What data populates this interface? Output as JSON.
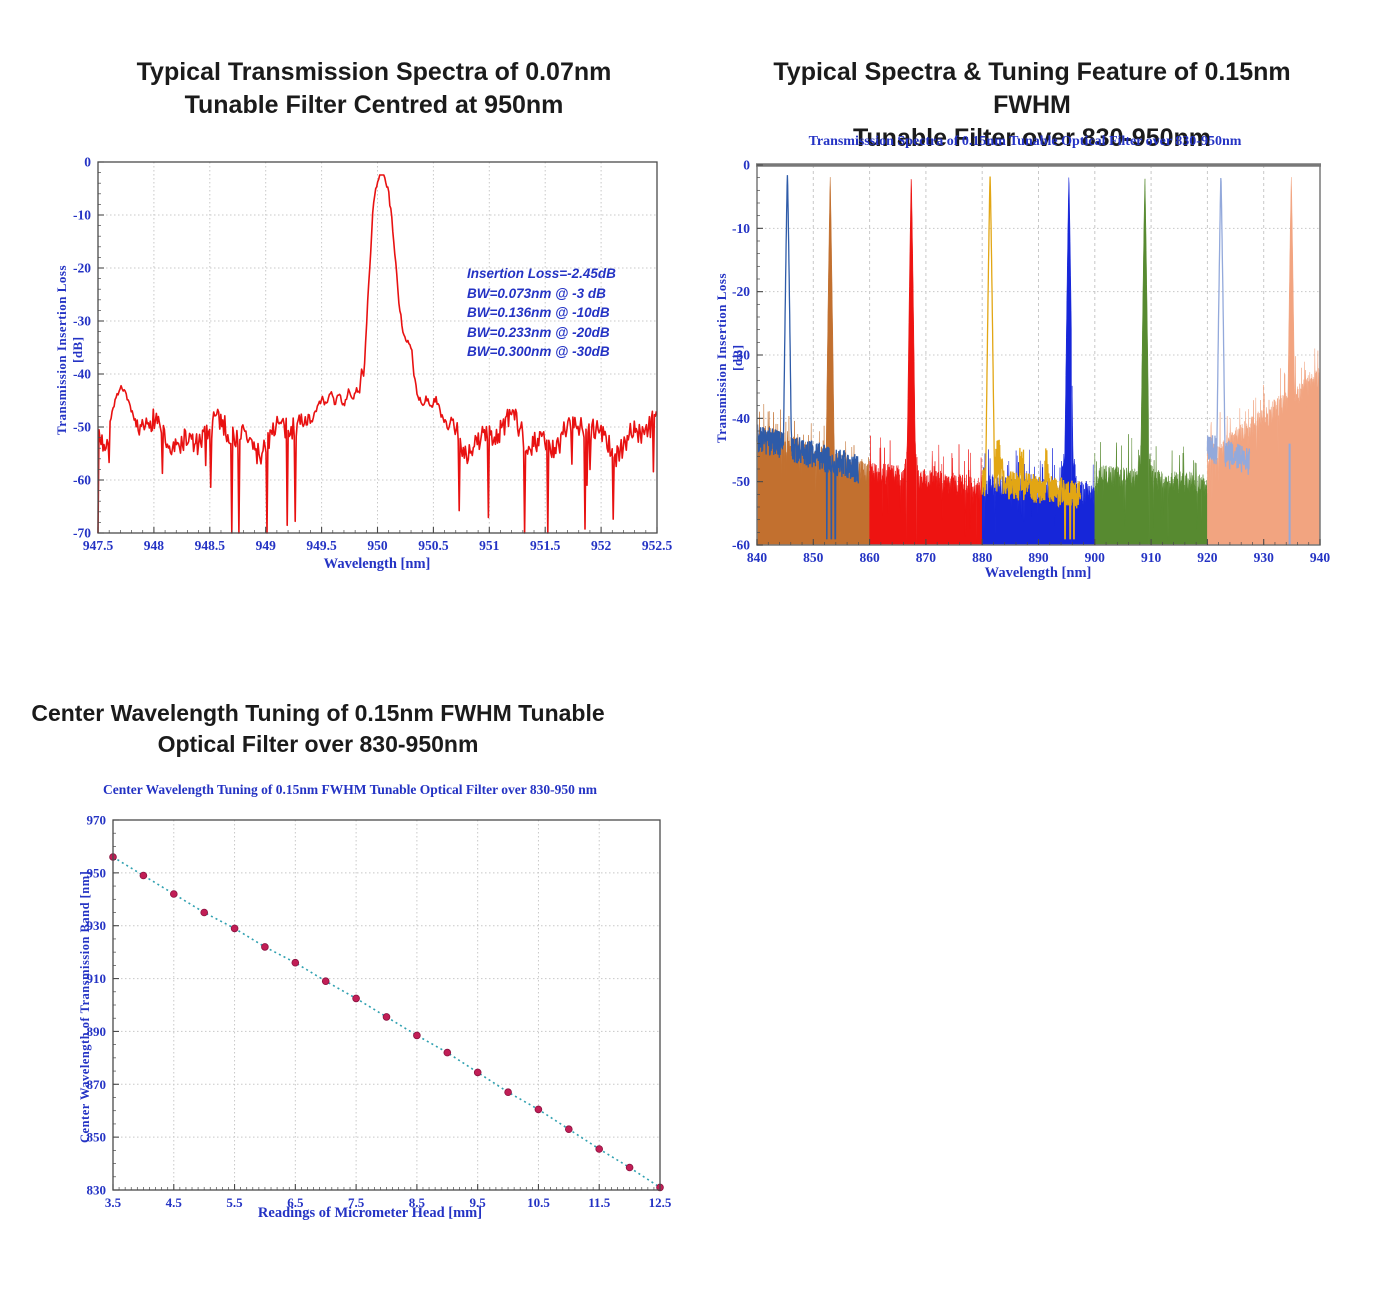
{
  "styles": {
    "heading_color": "#1b1b1b",
    "label_blue": "#2433C4",
    "title_blue": "#2026C8",
    "grid_color": "#c8c8c8",
    "frame_color": "#4a4a4a",
    "frame_gray": "#787878",
    "background": "#ffffff"
  },
  "chart_data": [
    {
      "type": "line",
      "heading": {
        "line1": "Typical Transmission Spectra of 0.07nm",
        "line2": "Tunable Filter Centred at 950nm"
      },
      "xlabel": "Wavelength [nm]",
      "ylabel": "Transmission Insertion Loss [dB]",
      "xlim": [
        947.5,
        952.5
      ],
      "ylim": [
        -70,
        0
      ],
      "x_ticks": [
        "947.5",
        "948",
        "948.5",
        "949",
        "949.5",
        "950",
        "950.5",
        "951",
        "951.5",
        "952",
        "952.5"
      ],
      "y_ticks": [
        "0",
        "-10",
        "-20",
        "-30",
        "-40",
        "-50",
        "-60",
        "-70"
      ],
      "line_color": "#E81111",
      "annotation": {
        "lines": [
          "Insertion Loss=-2.45dB",
          "BW=0.073nm @ -3 dB",
          "BW=0.136nm @ -10dB",
          "BW=0.233nm @ -20dB",
          "BW=0.300nm @ -30dB"
        ],
        "color": "#2433C4"
      },
      "peak": {
        "center_nm": 950.0,
        "top_db": -2.45,
        "fwhm_nm": 0.073
      },
      "noise_floor_db": -52,
      "envelope_segments": [
        [
          [
            947.6,
            -50
          ],
          [
            947.66,
            -44.5
          ],
          [
            947.7,
            -42.5
          ],
          [
            947.75,
            -44
          ],
          [
            947.8,
            -47
          ],
          [
            947.85,
            -50
          ]
        ],
        [
          [
            949.38,
            -50
          ],
          [
            949.45,
            -47
          ],
          [
            949.5,
            -44.5
          ],
          [
            949.55,
            -46
          ],
          [
            949.58,
            -43.5
          ],
          [
            949.62,
            -45.5
          ],
          [
            949.66,
            -43.8
          ],
          [
            949.7,
            -46
          ],
          [
            949.74,
            -43
          ],
          [
            949.78,
            -45
          ],
          [
            949.81,
            -42.5
          ],
          [
            949.84,
            -43.5
          ],
          [
            949.86,
            -39
          ],
          [
            949.88,
            -41
          ],
          [
            949.9,
            -31
          ],
          [
            949.93,
            -20
          ],
          [
            949.96,
            -9
          ],
          [
            950.0,
            -3.2
          ],
          [
            950.03,
            -2.45
          ],
          [
            950.07,
            -3.0
          ],
          [
            950.1,
            -6
          ],
          [
            950.13,
            -11
          ],
          [
            950.16,
            -18
          ],
          [
            950.19,
            -26
          ],
          [
            950.22,
            -31
          ],
          [
            950.25,
            -33.5
          ],
          [
            950.28,
            -34
          ],
          [
            950.31,
            -36
          ],
          [
            950.33,
            -41
          ],
          [
            950.36,
            -44
          ],
          [
            950.4,
            -46
          ],
          [
            950.44,
            -44.5
          ],
          [
            950.48,
            -46.5
          ],
          [
            950.52,
            -44.5
          ],
          [
            950.56,
            -47
          ],
          [
            950.6,
            -50
          ]
        ]
      ],
      "seed": 7
    },
    {
      "type": "area-spectra",
      "heading": {
        "line1": "Typical Spectra & Tuning Feature of 0.15nm FWHM",
        "line2": "Tunable Filter over 830-950nm"
      },
      "inner_title": "Transmisssion Spectra of 0.15nm Tunable Optical Filter over 830-950nm",
      "xlabel": "Wavelength [nm]",
      "ylabel": "Transmission Insertion Loss [dB]",
      "xlim": [
        840,
        940
      ],
      "ylim": [
        -60,
        0
      ],
      "x_ticks": [
        "840",
        "850",
        "860",
        "870",
        "880",
        "890",
        "900",
        "910",
        "920",
        "930",
        "940"
      ],
      "y_ticks": [
        "0",
        "-10",
        "-20",
        "-30",
        "-40",
        "-50",
        "-60"
      ],
      "peaks_nm": [
        845.4,
        853.0,
        867.4,
        881.4,
        895.4,
        908.9,
        922.4,
        934.9
      ],
      "filled_traces": [
        {
          "range": [
            840,
            860
          ],
          "color": "#C2702F",
          "floor": [
            -42.5,
            -49
          ],
          "peak": 853.0,
          "apex": -1.8,
          "dips": []
        },
        {
          "range": [
            860,
            880
          ],
          "color": "#EE1311",
          "floor": [
            -48.5,
            -51
          ],
          "peak": 867.4,
          "apex": -1.6,
          "dips": [
            866.5,
            868.3
          ]
        },
        {
          "range": [
            880,
            900
          ],
          "color": "#1626D9",
          "floor": [
            -50.5,
            -52
          ],
          "peak": 895.4,
          "apex": -1.7,
          "dips": [
            895.9
          ]
        },
        {
          "range": [
            900,
            920
          ],
          "color": "#578A30",
          "floor": [
            -49,
            -50.5
          ],
          "peak": 908.9,
          "apex": -1.9,
          "dips": [
            909.6
          ]
        },
        {
          "range": [
            920,
            940
          ],
          "color": "#F2A480",
          "floor": [
            -46.5,
            -33.5
          ],
          "peak": 934.9,
          "apex": -1.8,
          "dips": []
        }
      ],
      "line_traces": [
        {
          "range": [
            840,
            858
          ],
          "color": "#2E5BA8",
          "peak": 845.4,
          "apex": -1.6,
          "base": [
            -43,
            -48
          ],
          "dips": [
            852.4,
            853.2,
            853.9
          ],
          "bumps": []
        },
        {
          "range": [
            880,
            897.5
          ],
          "color": "#E2A614",
          "peak": 881.4,
          "apex": -1.7,
          "base": [
            -50,
            -52
          ],
          "dips": [
            894.7,
            895.6,
            896.3
          ],
          "bumps": [
            881.9,
            882.6,
            883.3,
            887.0,
            891.5
          ]
        },
        {
          "range": [
            920,
            927.5
          ],
          "color": "#93A9DB",
          "peak": 922.4,
          "apex": -1.6,
          "base": [
            -44.5,
            -47
          ],
          "dips": [],
          "bumps": [],
          "extra_vline": {
            "x": 934.6,
            "from": -44,
            "to": -60
          }
        }
      ],
      "seed": 11
    },
    {
      "type": "scatter",
      "heading": {
        "line1": "Center Wavelength Tuning of 0.15nm FWHM Tunable",
        "line2": "Optical Filter over 830-950nm"
      },
      "inner_title": "Center Wavelength Tuning of 0.15nm FWHM Tunable Optical Filter over 830-950 nm",
      "xlabel": "Readings of Micrometer Head [mm]",
      "ylabel": "Center Wavelength of  Transmission Band [nm]",
      "xlim": [
        3.5,
        12.5
      ],
      "ylim": [
        830,
        970
      ],
      "x_ticks": [
        "3.5",
        "4.5",
        "5.5",
        "6.5",
        "7.5",
        "8.5",
        "9.5",
        "10.5",
        "11.5",
        "12.5"
      ],
      "y_ticks": [
        "830",
        "850",
        "870",
        "890",
        "910",
        "930",
        "950",
        "970"
      ],
      "dot_color": "#C21E56",
      "trend_color": "#2FA0B0",
      "x": [
        3.5,
        4.0,
        4.5,
        5.0,
        5.5,
        6.0,
        6.5,
        7.0,
        7.5,
        8.0,
        8.5,
        9.0,
        9.5,
        10.0,
        10.5,
        11.0,
        11.5,
        12.0,
        12.5
      ],
      "y": [
        956,
        949,
        942,
        935,
        929,
        922,
        916,
        909,
        902.5,
        895.5,
        888.5,
        882,
        874.5,
        867,
        860.5,
        853,
        845.5,
        838.5,
        831
      ]
    }
  ]
}
